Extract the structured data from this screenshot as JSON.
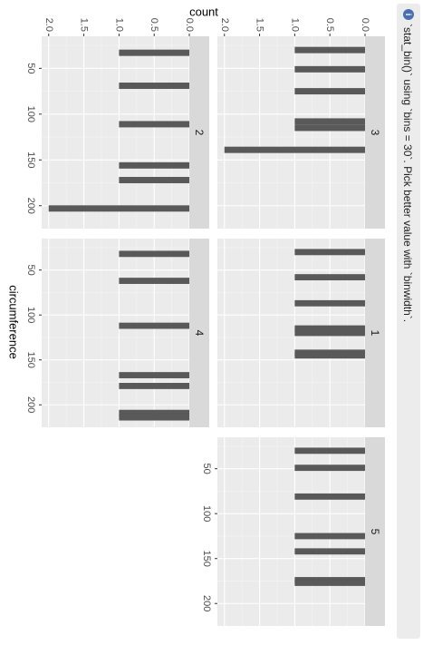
{
  "message": {
    "text": "`stat_bin()` using `bins = 30`. Pick better value with `binwidth`.",
    "icon": "info-icon",
    "icon_color": "#4a6fb0",
    "background": "#ececec"
  },
  "chart_data": {
    "type": "histogram",
    "orientation": "rotated 90° clockwise (plot drawn sideways)",
    "xlabel": "circumference",
    "ylabel": "count",
    "xlim": [
      15,
      225
    ],
    "ylim": [
      0,
      2.1
    ],
    "x_ticks": [
      50,
      100,
      150,
      200
    ],
    "y_ticks": [
      0.0,
      0.5,
      1.0,
      1.5,
      2.0
    ],
    "y_tick_labels": [
      "0.0",
      "0.5",
      "1.0",
      "1.5",
      "2.0"
    ],
    "bin_width": 6.9,
    "facet_rows": 2,
    "grid": true,
    "colors": {
      "bar": "#595959",
      "panel": "#ebebeb",
      "strip": "#d9d9d9",
      "grid_major": "#ffffff",
      "grid_minor": "#f5f5f5"
    },
    "panels": [
      {
        "label": "3",
        "bins": [
          {
            "x": 30,
            "count": 1
          },
          {
            "x": 51,
            "count": 1
          },
          {
            "x": 75,
            "count": 1
          },
          {
            "x": 108,
            "count": 1
          },
          {
            "x": 115,
            "count": 1
          },
          {
            "x": 139,
            "count": 2
          }
        ]
      },
      {
        "label": "1",
        "bins": [
          {
            "x": 30,
            "count": 1
          },
          {
            "x": 58,
            "count": 1
          },
          {
            "x": 87,
            "count": 1
          },
          {
            "x": 115,
            "count": 1
          },
          {
            "x": 120,
            "count": 1
          },
          {
            "x": 142,
            "count": 1
          },
          {
            "x": 145,
            "count": 1
          }
        ]
      },
      {
        "label": "5",
        "bins": [
          {
            "x": 30,
            "count": 1
          },
          {
            "x": 49,
            "count": 1
          },
          {
            "x": 81,
            "count": 1
          },
          {
            "x": 125,
            "count": 1
          },
          {
            "x": 142,
            "count": 1
          },
          {
            "x": 174,
            "count": 1
          },
          {
            "x": 177,
            "count": 1
          }
        ]
      },
      {
        "label": "2",
        "bins": [
          {
            "x": 33,
            "count": 1
          },
          {
            "x": 69,
            "count": 1
          },
          {
            "x": 111,
            "count": 1
          },
          {
            "x": 156,
            "count": 1
          },
          {
            "x": 172,
            "count": 1
          },
          {
            "x": 203,
            "count": 2
          }
        ]
      },
      {
        "label": "4",
        "bins": [
          {
            "x": 32,
            "count": 1
          },
          {
            "x": 62,
            "count": 1
          },
          {
            "x": 112,
            "count": 1
          },
          {
            "x": 167,
            "count": 1
          },
          {
            "x": 179,
            "count": 1
          },
          {
            "x": 209,
            "count": 1
          },
          {
            "x": 214,
            "count": 1
          }
        ]
      }
    ]
  }
}
